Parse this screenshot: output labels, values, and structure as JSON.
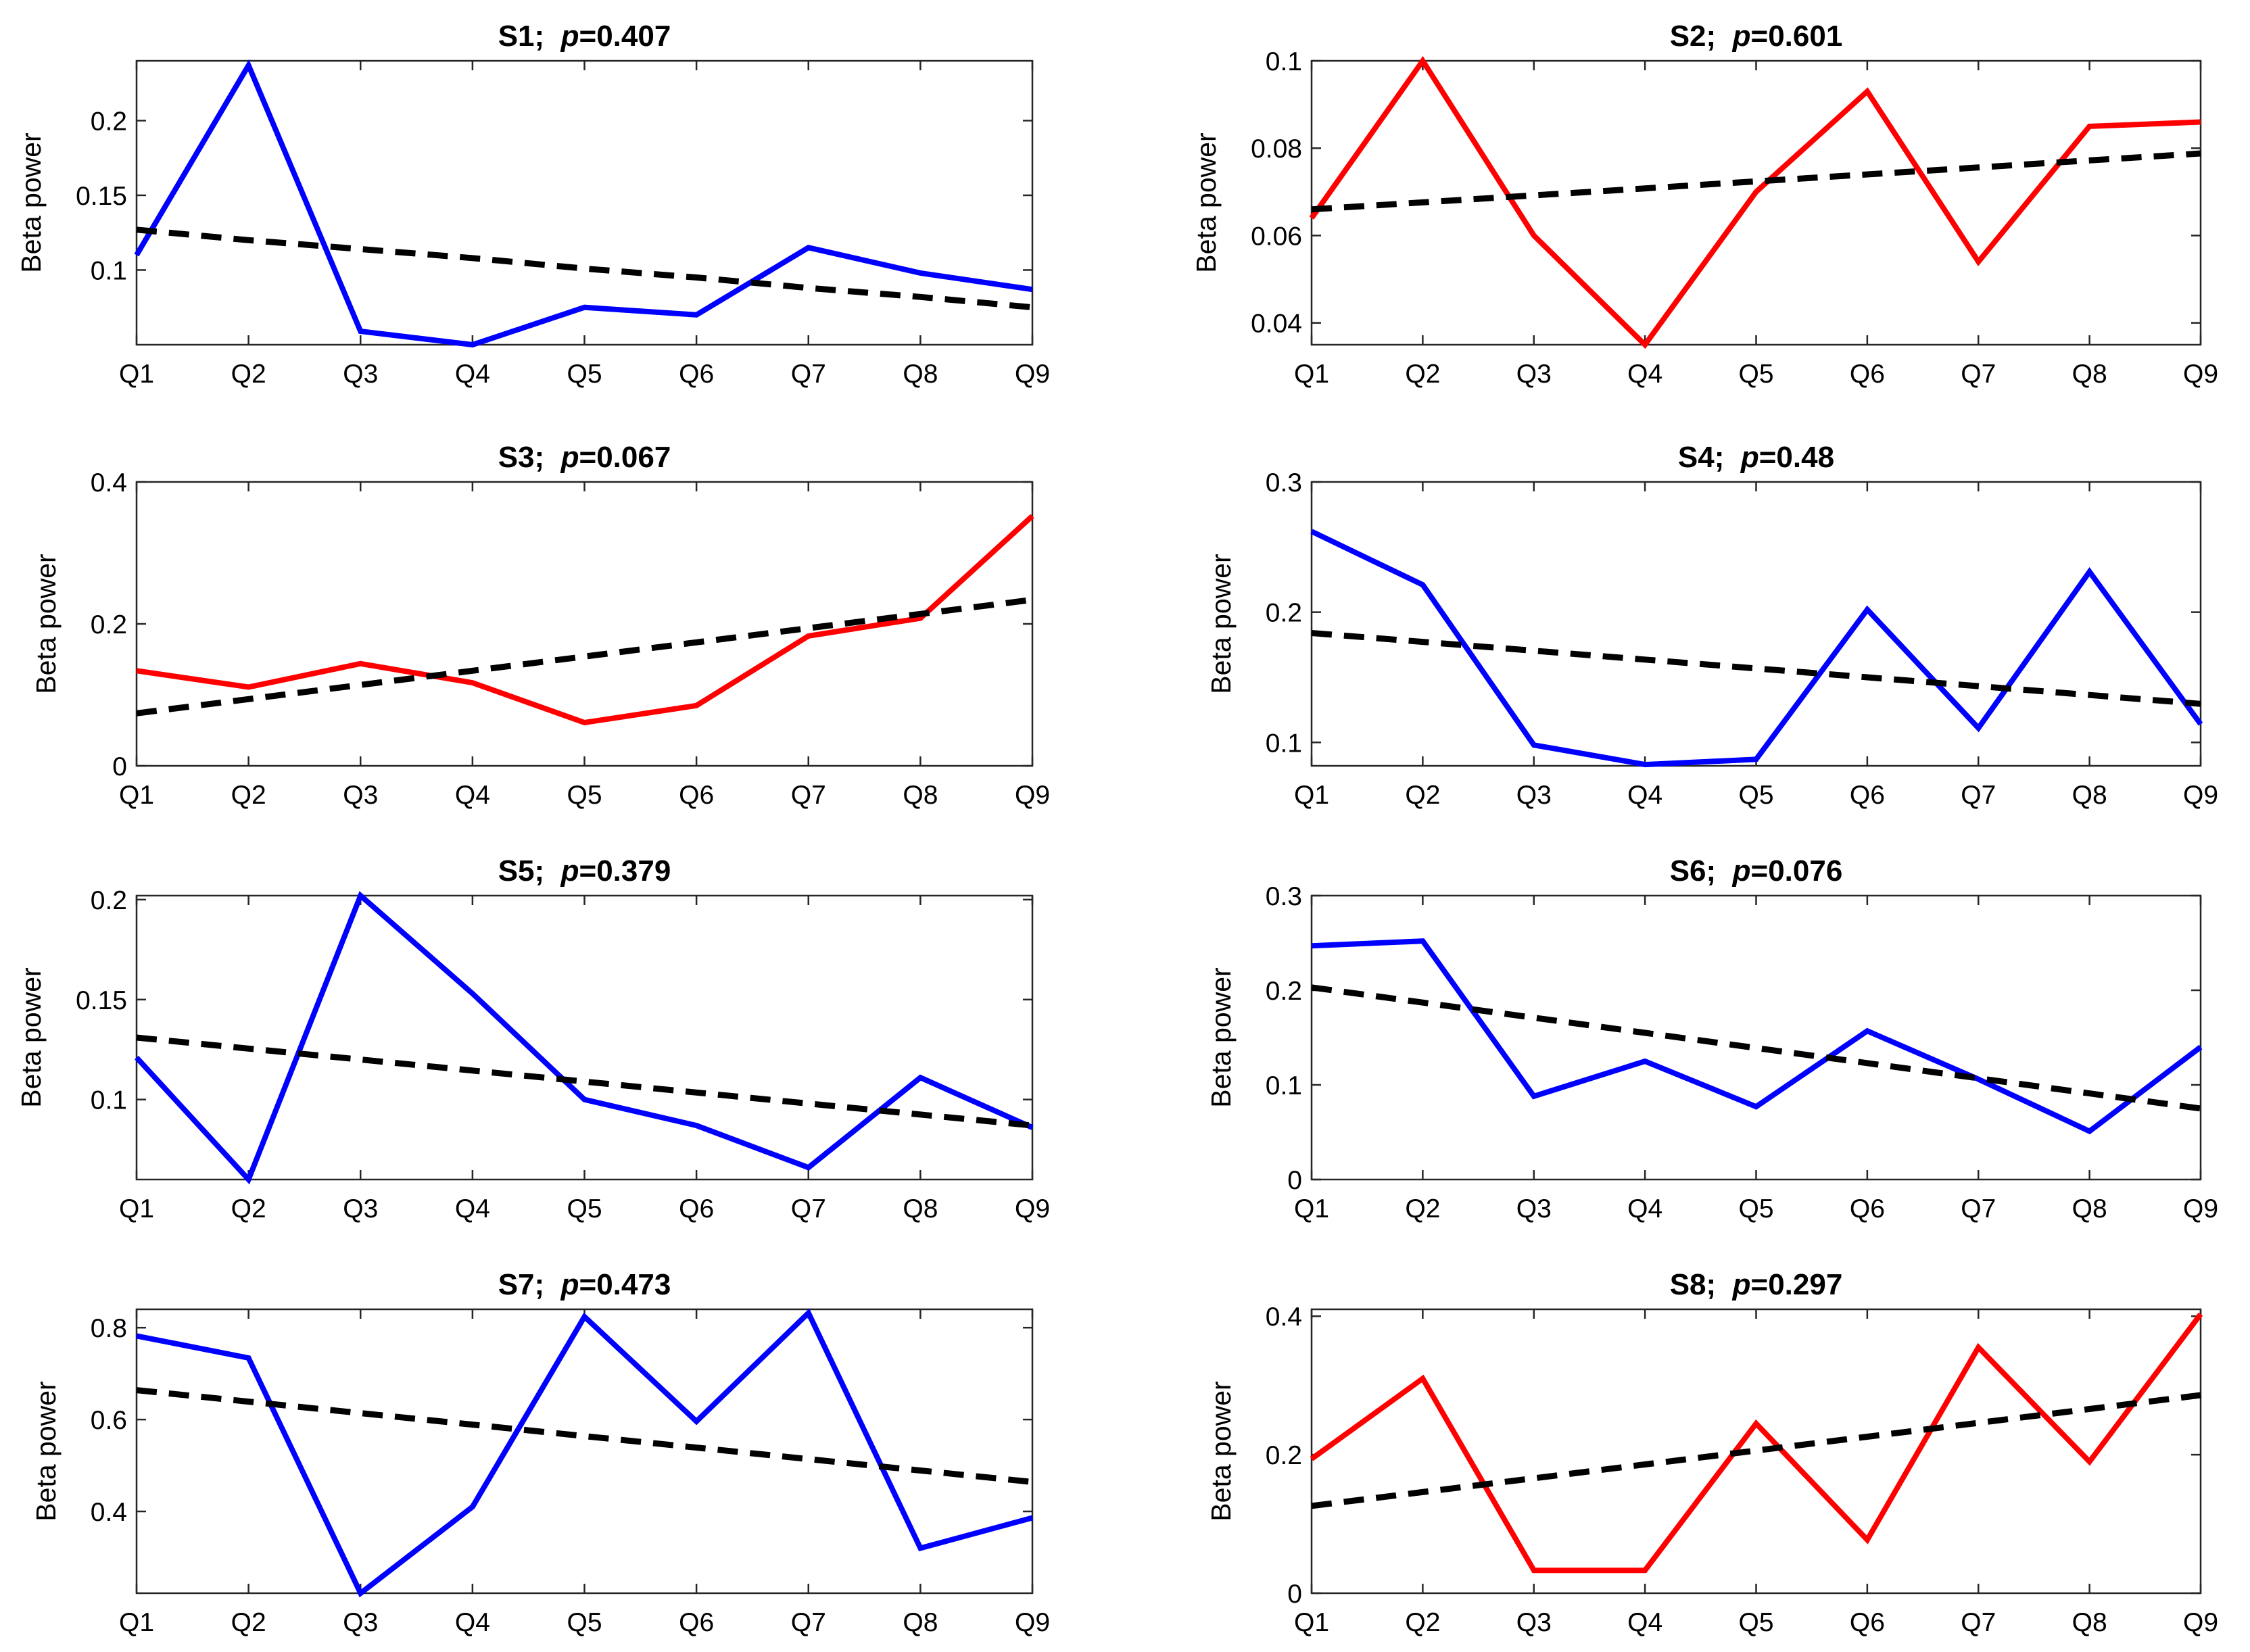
{
  "figure": {
    "name": "beta-power-by-quantile-panels"
  },
  "chart_data": [
    {
      "type": "line",
      "title_label": "S1;",
      "p_symbol": "p",
      "p_value": "=0.407",
      "categories": [
        "Q1",
        "Q2",
        "Q3",
        "Q4",
        "Q5",
        "Q6",
        "Q7",
        "Q8",
        "Q9"
      ],
      "series": [
        {
          "name": "beta power",
          "color": "#0000ff",
          "values": [
            0.11,
            0.237,
            0.059,
            0.05,
            0.075,
            0.07,
            0.115,
            0.098,
            0.087
          ]
        },
        {
          "name": "linear fit",
          "color": "#000000",
          "dashed": true,
          "values": [
            0.127,
            0.12,
            0.114,
            0.108,
            0.101,
            0.095,
            0.088,
            0.082,
            0.075
          ]
        }
      ],
      "xlabel": "",
      "ylabel": "Beta power",
      "ylim": [
        0.05,
        0.24
      ],
      "yticks": [
        0.1,
        0.15,
        0.2
      ],
      "ytick_labels": [
        "0.1",
        "0.15",
        "0.2"
      ],
      "grid": false
    },
    {
      "type": "line",
      "title_label": "S2;",
      "p_symbol": "p",
      "p_value": "=0.601",
      "categories": [
        "Q1",
        "Q2",
        "Q3",
        "Q4",
        "Q5",
        "Q6",
        "Q7",
        "Q8",
        "Q9"
      ],
      "series": [
        {
          "name": "beta power",
          "color": "#ff0000",
          "values": [
            0.064,
            0.1,
            0.06,
            0.035,
            0.07,
            0.093,
            0.054,
            0.085,
            0.086
          ]
        },
        {
          "name": "linear fit",
          "color": "#000000",
          "dashed": true,
          "values": [
            0.066,
            0.0676,
            0.0692,
            0.0708,
            0.0724,
            0.074,
            0.0756,
            0.0772,
            0.0788
          ]
        }
      ],
      "xlabel": "",
      "ylabel": "Beta power",
      "ylim": [
        0.035,
        0.1
      ],
      "yticks": [
        0.04,
        0.06,
        0.08,
        0.1
      ],
      "ytick_labels": [
        "0.04",
        "0.06",
        "0.08",
        "0.1"
      ],
      "grid": false
    },
    {
      "type": "line",
      "title_label": "S3;",
      "p_symbol": "p",
      "p_value": "=0.067",
      "categories": [
        "Q1",
        "Q2",
        "Q3",
        "Q4",
        "Q5",
        "Q6",
        "Q7",
        "Q8",
        "Q9"
      ],
      "series": [
        {
          "name": "beta power",
          "color": "#ff0000",
          "values": [
            0.134,
            0.111,
            0.144,
            0.117,
            0.061,
            0.085,
            0.183,
            0.208,
            0.352
          ]
        },
        {
          "name": "linear fit",
          "color": "#000000",
          "dashed": true,
          "values": [
            0.074,
            0.094,
            0.114,
            0.134,
            0.154,
            0.174,
            0.194,
            0.214,
            0.234
          ]
        }
      ],
      "xlabel": "",
      "ylabel": "Beta power",
      "ylim": [
        0,
        0.4
      ],
      "yticks": [
        0,
        0.2,
        0.4
      ],
      "ytick_labels": [
        "0",
        "0.2",
        "0.4"
      ],
      "grid": false
    },
    {
      "type": "line",
      "title_label": "S4;",
      "p_symbol": "p",
      "p_value": "=0.48",
      "categories": [
        "Q1",
        "Q2",
        "Q3",
        "Q4",
        "Q5",
        "Q6",
        "Q7",
        "Q8",
        "Q9"
      ],
      "series": [
        {
          "name": "beta power",
          "color": "#0000ff",
          "values": [
            0.262,
            0.221,
            0.098,
            0.083,
            0.087,
            0.202,
            0.111,
            0.231,
            0.114
          ]
        },
        {
          "name": "linear fit",
          "color": "#000000",
          "dashed": true,
          "values": [
            0.184,
            0.1772,
            0.1704,
            0.1636,
            0.1568,
            0.15,
            0.1432,
            0.1364,
            0.1296
          ]
        }
      ],
      "xlabel": "",
      "ylabel": "Beta power",
      "ylim": [
        0.082,
        0.3
      ],
      "yticks": [
        0.1,
        0.2,
        0.3
      ],
      "ytick_labels": [
        "0.1",
        "0.2",
        "0.3"
      ],
      "grid": false
    },
    {
      "type": "line",
      "title_label": "S5;",
      "p_symbol": "p",
      "p_value": "=0.379",
      "categories": [
        "Q1",
        "Q2",
        "Q3",
        "Q4",
        "Q5",
        "Q6",
        "Q7",
        "Q8",
        "Q9"
      ],
      "series": [
        {
          "name": "beta power",
          "color": "#0000ff",
          "values": [
            0.121,
            0.06,
            0.202,
            0.153,
            0.1,
            0.087,
            0.066,
            0.111,
            0.086
          ]
        },
        {
          "name": "linear fit",
          "color": "#000000",
          "dashed": true,
          "values": [
            0.131,
            0.1255,
            0.12,
            0.1145,
            0.109,
            0.1035,
            0.098,
            0.0925,
            0.087
          ]
        }
      ],
      "xlabel": "",
      "ylabel": "Beta power",
      "ylim": [
        0.06,
        0.202
      ],
      "yticks": [
        0.1,
        0.15,
        0.2
      ],
      "ytick_labels": [
        "0.1",
        "0.15",
        "0.2"
      ],
      "grid": false
    },
    {
      "type": "line",
      "title_label": "S6;",
      "p_symbol": "p",
      "p_value": "=0.076",
      "categories": [
        "Q1",
        "Q2",
        "Q3",
        "Q4",
        "Q5",
        "Q6",
        "Q7",
        "Q8",
        "Q9"
      ],
      "series": [
        {
          "name": "beta power",
          "color": "#0000ff",
          "values": [
            0.247,
            0.252,
            0.088,
            0.125,
            0.077,
            0.157,
            0.106,
            0.051,
            0.14
          ]
        },
        {
          "name": "linear fit",
          "color": "#000000",
          "dashed": true,
          "values": [
            0.203,
            0.187,
            0.171,
            0.155,
            0.139,
            0.123,
            0.107,
            0.091,
            0.075
          ]
        }
      ],
      "xlabel": "",
      "ylabel": "Beta power",
      "ylim": [
        0,
        0.3
      ],
      "yticks": [
        0,
        0.1,
        0.2,
        0.3
      ],
      "ytick_labels": [
        "0",
        "0.1",
        "0.2",
        "0.3"
      ],
      "grid": false
    },
    {
      "type": "line",
      "title_label": "S7;",
      "p_symbol": "p",
      "p_value": "=0.473",
      "categories": [
        "Q1",
        "Q2",
        "Q3",
        "Q4",
        "Q5",
        "Q6",
        "Q7",
        "Q8",
        "Q9"
      ],
      "series": [
        {
          "name": "beta power",
          "color": "#0000ff",
          "values": [
            0.782,
            0.734,
            0.222,
            0.41,
            0.824,
            0.596,
            0.832,
            0.32,
            0.386
          ]
        },
        {
          "name": "linear fit",
          "color": "#000000",
          "dashed": true,
          "values": [
            0.664,
            0.639,
            0.614,
            0.589,
            0.564,
            0.539,
            0.514,
            0.489,
            0.464
          ]
        }
      ],
      "xlabel": "",
      "ylabel": "Beta power",
      "ylim": [
        0.222,
        0.84
      ],
      "yticks": [
        0.4,
        0.6,
        0.8
      ],
      "ytick_labels": [
        "0.4",
        "0.6",
        "0.8"
      ],
      "grid": false
    },
    {
      "type": "line",
      "title_label": "S8;",
      "p_symbol": "p",
      "p_value": "=0.297",
      "categories": [
        "Q1",
        "Q2",
        "Q3",
        "Q4",
        "Q5",
        "Q6",
        "Q7",
        "Q8",
        "Q9"
      ],
      "series": [
        {
          "name": "beta power",
          "color": "#ff0000",
          "values": [
            0.194,
            0.31,
            0.033,
            0.033,
            0.245,
            0.077,
            0.355,
            0.19,
            0.403
          ]
        },
        {
          "name": "linear fit",
          "color": "#000000",
          "dashed": true,
          "values": [
            0.126,
            0.146,
            0.166,
            0.186,
            0.206,
            0.226,
            0.246,
            0.266,
            0.286
          ]
        }
      ],
      "xlabel": "",
      "ylabel": "Beta power",
      "ylim": [
        0,
        0.41
      ],
      "yticks": [
        0,
        0.2,
        0.4
      ],
      "ytick_labels": [
        "0",
        "0.2",
        "0.4"
      ],
      "grid": false
    }
  ]
}
